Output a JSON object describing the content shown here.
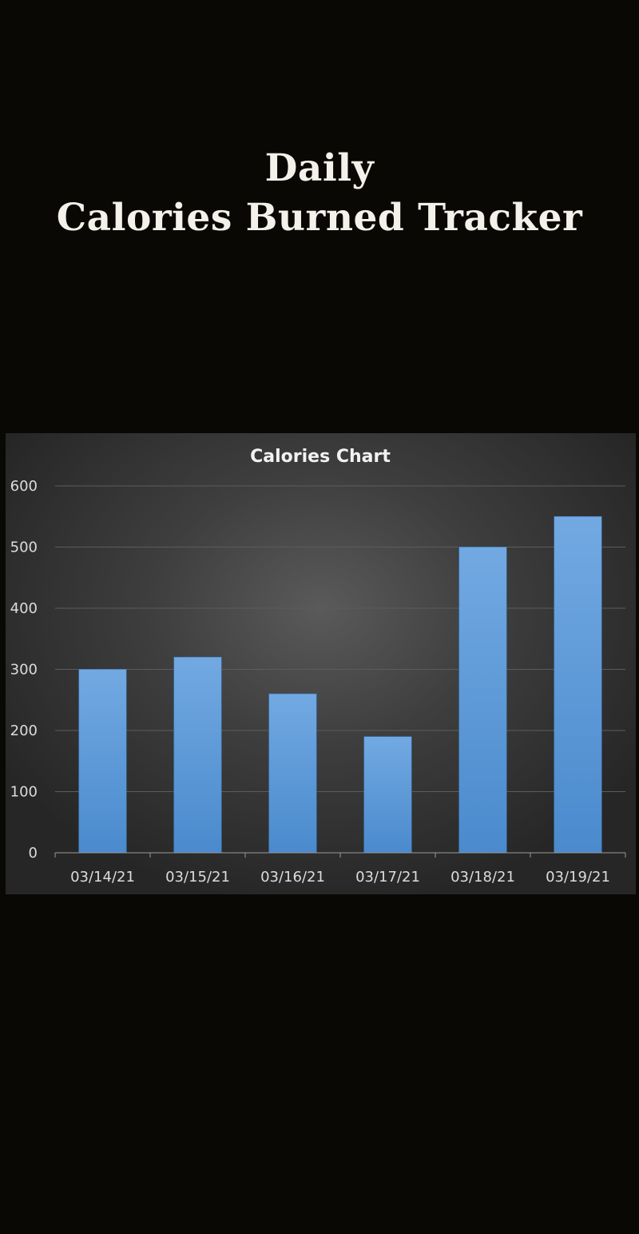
{
  "header": {
    "line1": "Daily",
    "line2": "Calories Burned Tracker"
  },
  "chart_data": {
    "type": "bar",
    "title": "Calories Chart",
    "categories": [
      "03/14/21",
      "03/15/21",
      "03/16/21",
      "03/17/21",
      "03/18/21",
      "03/19/21"
    ],
    "values": [
      300,
      320,
      260,
      190,
      500,
      550
    ],
    "xlabel": "",
    "ylabel": "",
    "ylim": [
      0,
      600
    ],
    "yticks": [
      0,
      100,
      200,
      300,
      400,
      500,
      600
    ],
    "grid": true,
    "legend": "none",
    "bar_color": "#5b9bdc"
  }
}
